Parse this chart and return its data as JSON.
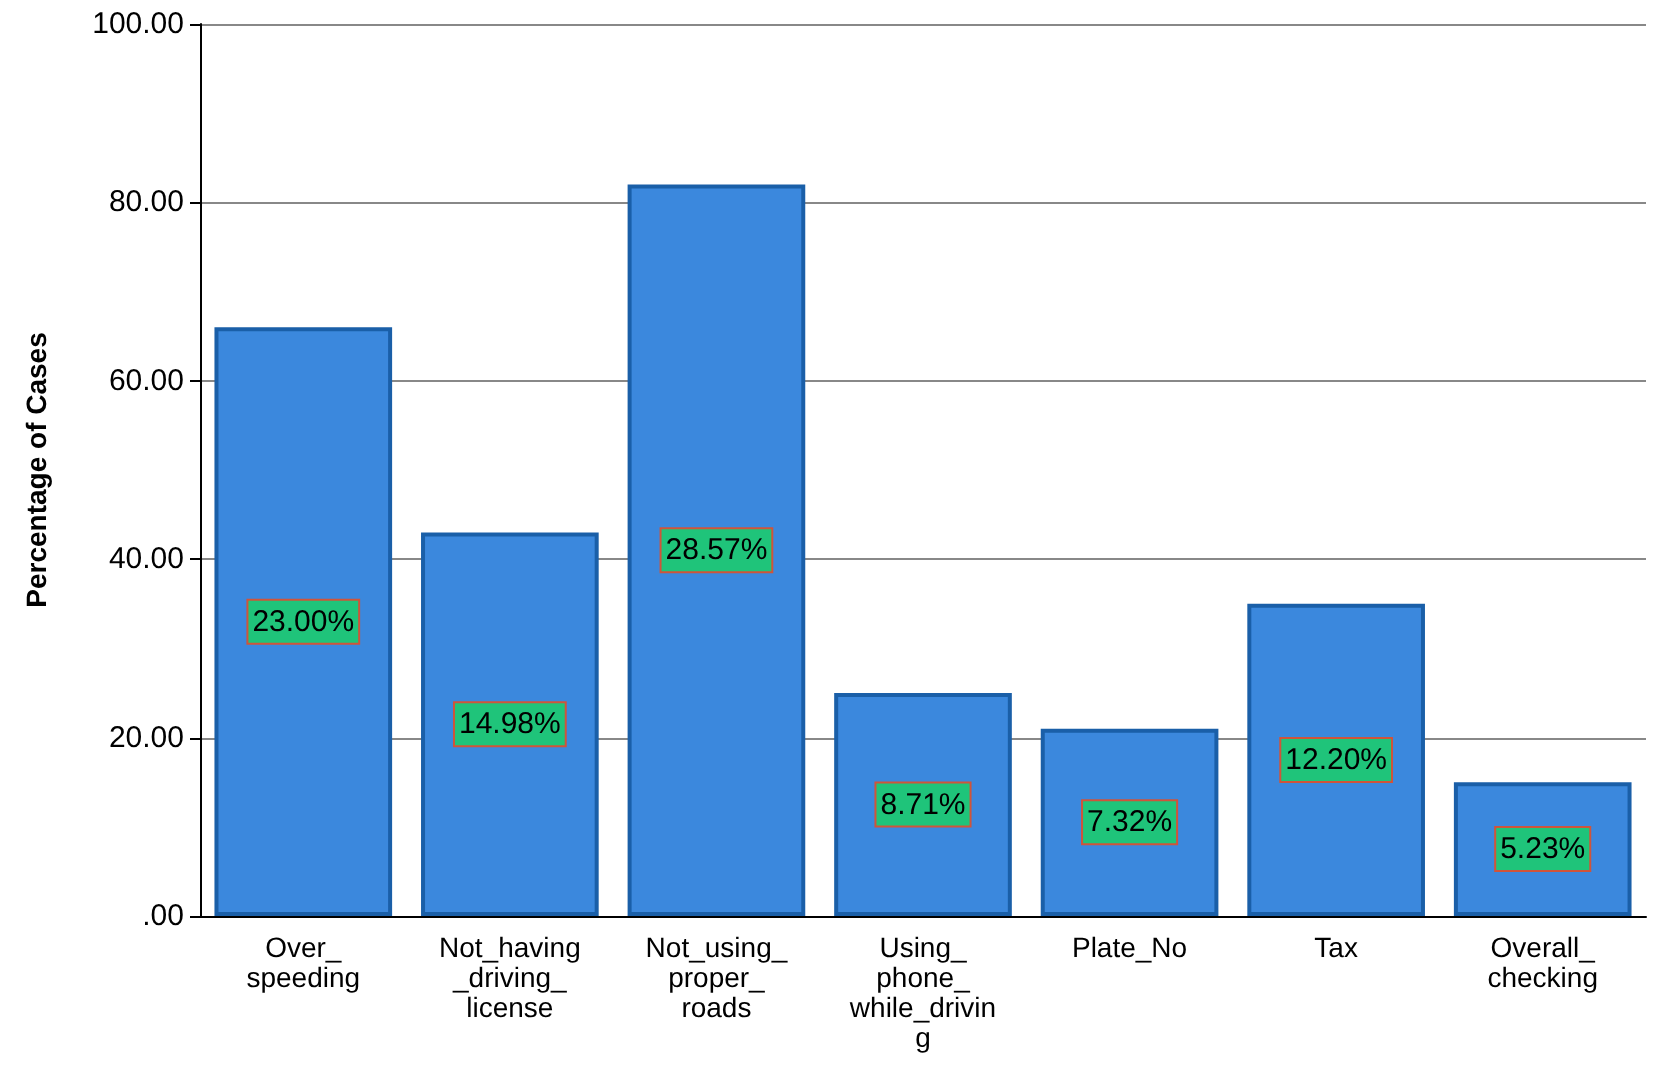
{
  "chart_data": {
    "type": "bar",
    "ylabel": "Percentage of Cases",
    "categories": [
      "Over_\nspeeding",
      "Not_having\n_driving_\nlicense",
      "Not_using_\nproper_\nroads",
      "Using_\nphone_\nwhile_drivin\ng",
      "Plate_No",
      "Tax",
      "Overall_\nchecking"
    ],
    "values": [
      66,
      43,
      82,
      25,
      21,
      35,
      15
    ],
    "annotations": [
      "23.00%",
      "14.98%",
      "28.57%",
      "8.71%",
      "7.32%",
      "12.20%",
      "5.23%"
    ],
    "color": "#3b88dd",
    "ylim": [
      0,
      100
    ],
    "yticks": [
      {
        "value": 0,
        "label": ".00"
      },
      {
        "value": 20,
        "label": "20.00"
      },
      {
        "value": 40,
        "label": "40.00"
      },
      {
        "value": 60,
        "label": "60.00"
      },
      {
        "value": 80,
        "label": "80.00"
      },
      {
        "value": 100,
        "label": "100.00"
      }
    ],
    "grid": "y"
  }
}
